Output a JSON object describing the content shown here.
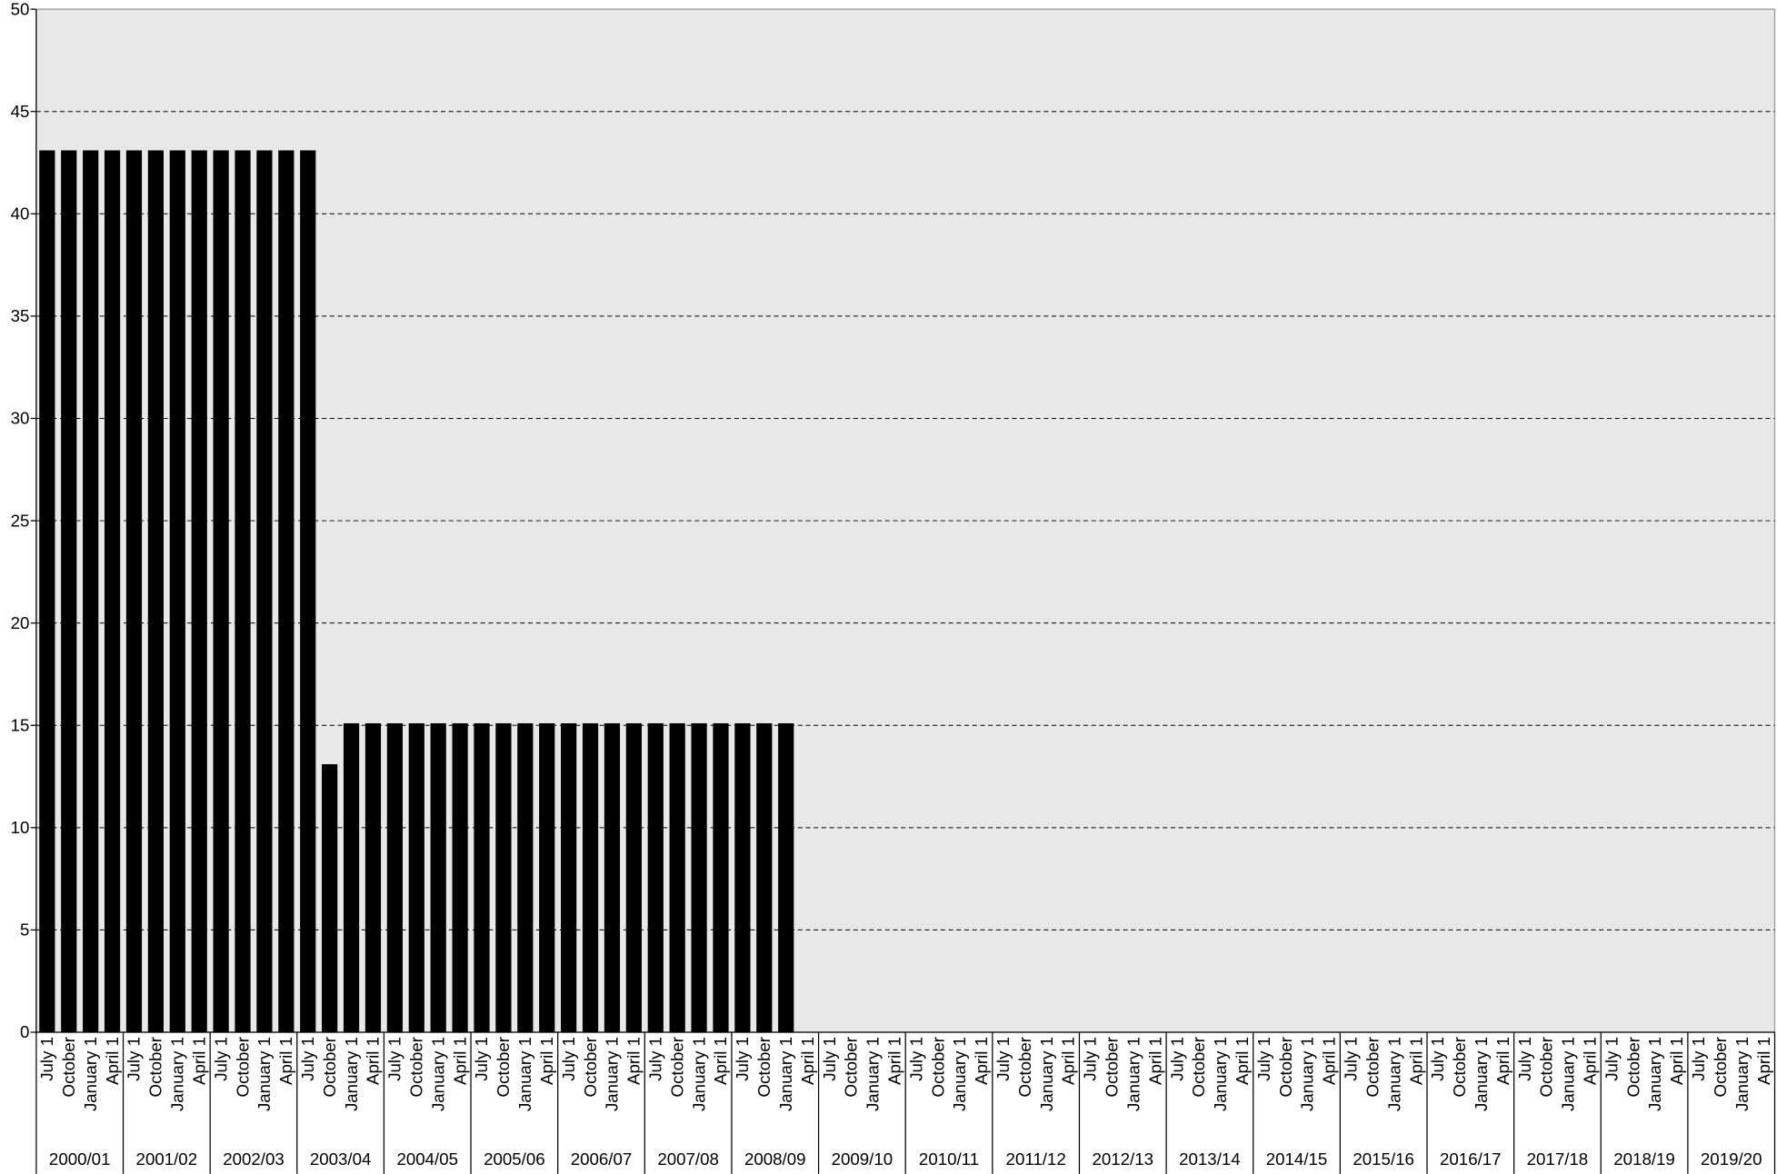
{
  "chart_data": {
    "type": "bar",
    "color": "#000000",
    "background": "#e8e8e8",
    "grid": true,
    "ylim": [
      0,
      50
    ],
    "yticks": [
      0,
      5,
      10,
      15,
      20,
      25,
      30,
      35,
      40,
      45,
      50
    ],
    "groups": [
      "2000/01",
      "2001/02",
      "2002/03",
      "2003/04",
      "2004/05",
      "2005/06",
      "2006/07",
      "2007/08",
      "2008/09",
      "2009/10",
      "2010/11",
      "2011/12",
      "2012/13",
      "2013/14",
      "2014/15",
      "2015/16",
      "2016/17",
      "2017/18",
      "2018/19",
      "2019/20"
    ],
    "categories": [
      "July 1",
      "October",
      "January 1",
      "April 1",
      "July 1",
      "October",
      "January 1",
      "April 1",
      "July 1",
      "October",
      "January 1",
      "April 1",
      "July 1",
      "October",
      "January 1",
      "April 1",
      "July 1",
      "October",
      "January 1",
      "April 1",
      "July 1",
      "October",
      "January 1",
      "April 1",
      "July 1",
      "October",
      "January 1",
      "April 1",
      "July 1",
      "October",
      "January 1",
      "April 1",
      "July 1",
      "October",
      "January 1",
      "April 1",
      "July 1",
      "October",
      "January 1",
      "April 1",
      "July 1",
      "October",
      "January 1",
      "April 1",
      "July 1",
      "October",
      "January 1",
      "April 1",
      "July 1",
      "October",
      "January 1",
      "April 1",
      "July 1",
      "October",
      "January 1",
      "April 1",
      "July 1",
      "October",
      "January 1",
      "April 1",
      "July 1",
      "October",
      "January 1",
      "April 1",
      "July 1",
      "October",
      "January 1",
      "April 1",
      "July 1",
      "October",
      "January 1",
      "April 1",
      "July 1",
      "October",
      "January 1",
      "April 1",
      "July 1",
      "October",
      "January 1",
      "April 1"
    ],
    "values": [
      43.1,
      43.1,
      43.1,
      43.1,
      43.1,
      43.1,
      43.1,
      43.1,
      43.1,
      43.1,
      43.1,
      43.1,
      43.1,
      13.1,
      15.1,
      15.1,
      15.1,
      15.1,
      15.1,
      15.1,
      15.1,
      15.1,
      15.1,
      15.1,
      15.1,
      15.1,
      15.1,
      15.1,
      15.1,
      15.1,
      15.1,
      15.1,
      15.1,
      15.1,
      15.1,
      null,
      null,
      null,
      null,
      null,
      null,
      null,
      null,
      null,
      null,
      null,
      null,
      null,
      null,
      null,
      null,
      null,
      null,
      null,
      null,
      null,
      null,
      null,
      null,
      null,
      null,
      null,
      null,
      null,
      null,
      null,
      null,
      null,
      null,
      null,
      null,
      null,
      null,
      null,
      null,
      null,
      null,
      null,
      null,
      null
    ]
  }
}
